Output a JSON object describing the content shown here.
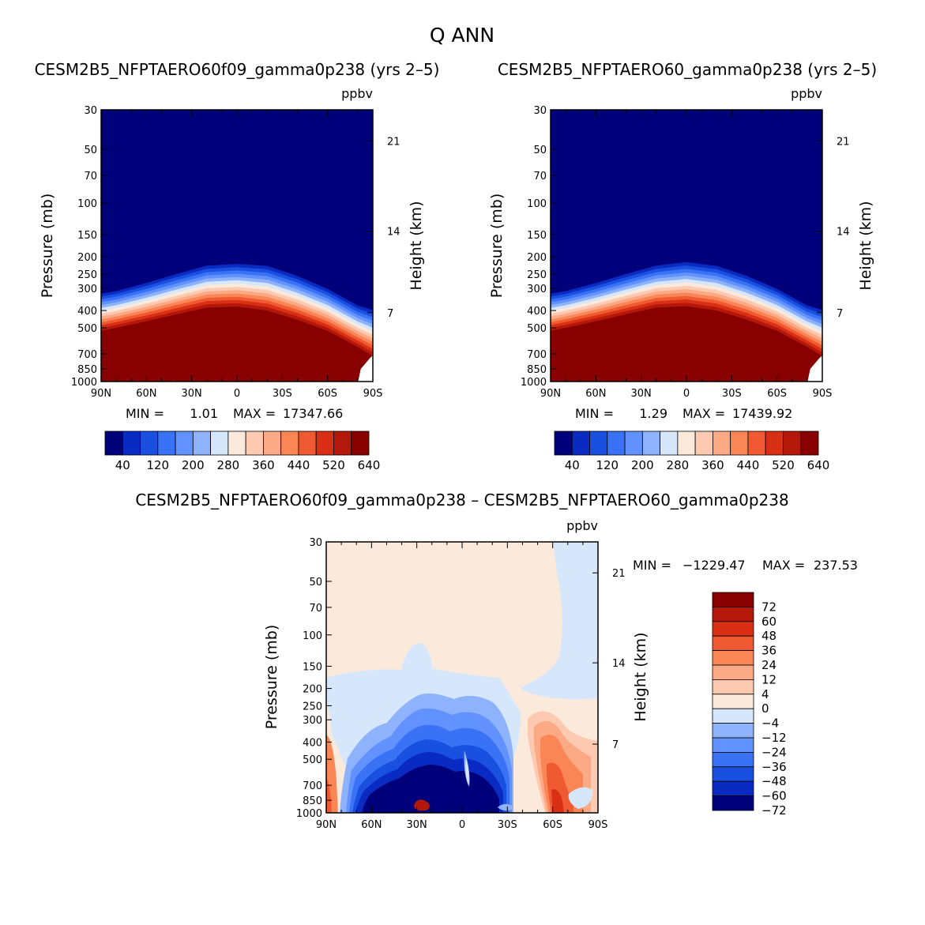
{
  "title": "Q ANN",
  "y_ticks": [
    30,
    50,
    70,
    100,
    150,
    200,
    250,
    300,
    400,
    500,
    700,
    850,
    1000
  ],
  "x_ticks": [
    "90N",
    "60N",
    "30N",
    "0",
    "30S",
    "60S",
    "90S"
  ],
  "height_ticks": [
    "21",
    "14",
    "7"
  ],
  "ylabel": "Pressure (mb)",
  "ylabel_right": "Height (km)",
  "units": "ppbv",
  "panels": [
    {
      "subtitle": "CESM2B5_NFPTAERO60f09_gamma0p238 (yrs 2–5)",
      "min_label": "MIN =",
      "min_value": "1.01",
      "max_label": "MAX =",
      "max_value": "17347.66"
    },
    {
      "subtitle": "CESM2B5_NFPTAERO60_gamma0p238 (yrs 2–5)",
      "min_label": "MIN =",
      "min_value": "1.29",
      "max_label": "MAX =",
      "max_value": "17439.92"
    },
    {
      "subtitle": "CESM2B5_NFPTAERO60f09_gamma0p238 – CESM2B5_NFPTAERO60_gamma0p238",
      "min_label": "MIN =",
      "min_value": "−1229.47",
      "max_label": "MAX =",
      "max_value": "237.53"
    }
  ],
  "colorbar_top": {
    "labels": [
      "40",
      "120",
      "200",
      "280",
      "360",
      "440",
      "520",
      "640"
    ],
    "colors": [
      "#00007a",
      "#0a2bc2",
      "#1a50e0",
      "#3a72f5",
      "#6192ff",
      "#8eb3fc",
      "#d6e7fb",
      "#fbeadc",
      "#fdcab1",
      "#fca986",
      "#fa8555",
      "#f05a32",
      "#d92f14",
      "#b4180a",
      "#880000"
    ]
  },
  "colorbar_diff": {
    "labels": [
      "72",
      "60",
      "48",
      "36",
      "24",
      "12",
      "4",
      "0",
      "−4",
      "−12",
      "−24",
      "−36",
      "−48",
      "−60",
      "−72"
    ],
    "colors": [
      "#880000",
      "#b4180a",
      "#d92f14",
      "#f05a32",
      "#fa8555",
      "#fca986",
      "#fdcab1",
      "#fbeadc",
      "#d6e7fb",
      "#8eb3fc",
      "#6192ff",
      "#3a72f5",
      "#1a50e0",
      "#0a2bc2",
      "#00007a"
    ]
  },
  "chart_data": [
    {
      "type": "heatmap",
      "title": "CESM2B5_NFPTAERO60f09_gamma0p238 (yrs 2–5)",
      "xlabel": "",
      "ylabel": "Pressure (mb)",
      "ylabel_right": "Height (km)",
      "x": [
        "90N",
        "60N",
        "30N",
        "0",
        "30S",
        "60S",
        "90S"
      ],
      "xlim": [
        90,
        -90
      ],
      "ylim": [
        1000,
        30
      ],
      "units": "ppbv",
      "min": 1.01,
      "max": 17347.66,
      "contour_levels": [
        40,
        80,
        120,
        160,
        200,
        240,
        280,
        320,
        360,
        400,
        440,
        480,
        520,
        580,
        640
      ],
      "boundary_x": [
        90,
        80,
        60,
        40,
        20,
        0,
        -20,
        -40,
        -60,
        -80,
        -90
      ],
      "top_contour_pressure": [
        310,
        300,
        270,
        240,
        215,
        210,
        215,
        245,
        290,
        360,
        380
      ],
      "bottom_contour_pressure": [
        520,
        500,
        460,
        420,
        385,
        380,
        400,
        450,
        520,
        640,
        720
      ]
    },
    {
      "type": "heatmap",
      "title": "CESM2B5_NFPTAERO60_gamma0p238 (yrs 2–5)",
      "xlabel": "",
      "ylabel": "Pressure (mb)",
      "ylabel_right": "Height (km)",
      "x": [
        "90N",
        "60N",
        "30N",
        "0",
        "30S",
        "60S",
        "90S"
      ],
      "xlim": [
        90,
        -90
      ],
      "ylim": [
        1000,
        30
      ],
      "units": "ppbv",
      "min": 1.29,
      "max": 17439.92,
      "contour_levels": [
        40,
        80,
        120,
        160,
        200,
        240,
        280,
        320,
        360,
        400,
        440,
        480,
        520,
        580,
        640
      ],
      "boundary_x": [
        90,
        80,
        60,
        40,
        20,
        0,
        -20,
        -40,
        -60,
        -80,
        -90
      ],
      "top_contour_pressure": [
        310,
        300,
        270,
        240,
        215,
        205,
        215,
        245,
        290,
        360,
        380
      ],
      "bottom_contour_pressure": [
        520,
        500,
        460,
        420,
        385,
        378,
        400,
        450,
        520,
        640,
        720
      ]
    },
    {
      "type": "heatmap",
      "title": "CESM2B5_NFPTAERO60f09_gamma0p238 – CESM2B5_NFPTAERO60_gamma0p238",
      "xlabel": "",
      "ylabel": "Pressure (mb)",
      "ylabel_right": "Height (km)",
      "x": [
        "90N",
        "60N",
        "30N",
        "0",
        "30S",
        "60S",
        "90S"
      ],
      "xlim": [
        90,
        -90
      ],
      "ylim": [
        1000,
        30
      ],
      "units": "ppbv",
      "min": -1229.47,
      "max": 237.53,
      "contour_levels": [
        -72,
        -60,
        -48,
        -36,
        -24,
        -12,
        -4,
        0,
        4,
        12,
        24,
        36,
        48,
        60,
        72
      ]
    }
  ]
}
